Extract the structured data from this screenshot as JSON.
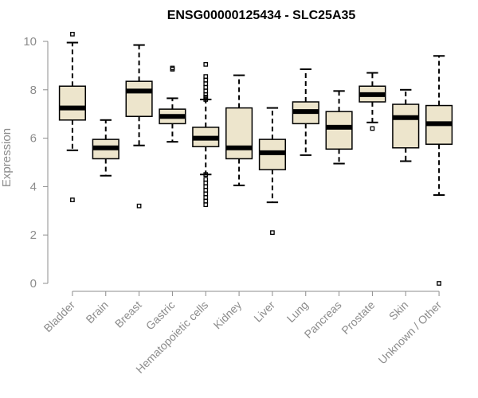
{
  "chart_data": {
    "type": "box",
    "title": "ENSG00000125434 - SLC25A35",
    "xlabel": "",
    "ylabel": "Expression",
    "ylim": [
      0,
      10.3
    ],
    "yticks": [
      0,
      2,
      4,
      6,
      8,
      10
    ],
    "grid": false,
    "box_fill": "#ede5cc",
    "box_stroke": "#000000",
    "categories": [
      "Bladder",
      "Brain",
      "Breast",
      "Gastric",
      "Hematopoietic cells",
      "Kidney",
      "Liver",
      "Lung",
      "Pancreas",
      "Prostate",
      "Skin",
      "Unknown / Other"
    ],
    "boxes": [
      {
        "whisker_low": 5.5,
        "q1": 6.75,
        "median": 7.25,
        "q3": 8.15,
        "whisker_high": 9.95,
        "outliers": [
          10.3,
          3.45
        ]
      },
      {
        "whisker_low": 4.45,
        "q1": 5.15,
        "median": 5.6,
        "q3": 5.95,
        "whisker_high": 6.75,
        "outliers": []
      },
      {
        "whisker_low": 5.7,
        "q1": 6.9,
        "median": 7.95,
        "q3": 8.35,
        "whisker_high": 9.85,
        "outliers": [
          3.2
        ]
      },
      {
        "whisker_low": 5.85,
        "q1": 6.6,
        "median": 6.9,
        "q3": 7.2,
        "whisker_high": 7.65,
        "outliers": [
          8.85,
          8.9
        ]
      },
      {
        "whisker_low": 4.5,
        "q1": 5.65,
        "median": 6.0,
        "q3": 6.45,
        "whisker_high": 7.6,
        "outliers": [
          9.05,
          8.55,
          8.4,
          8.25,
          8.1,
          7.95,
          7.8,
          7.7,
          7.6,
          4.5,
          4.3,
          4.15,
          4.0,
          3.85,
          3.7,
          3.55,
          3.4,
          3.25
        ]
      },
      {
        "whisker_low": 4.05,
        "q1": 5.15,
        "median": 5.6,
        "q3": 7.25,
        "whisker_high": 8.6,
        "outliers": []
      },
      {
        "whisker_low": 3.35,
        "q1": 4.7,
        "median": 5.4,
        "q3": 5.95,
        "whisker_high": 7.25,
        "outliers": [
          2.1
        ]
      },
      {
        "whisker_low": 5.3,
        "q1": 6.6,
        "median": 7.1,
        "q3": 7.5,
        "whisker_high": 8.85,
        "outliers": []
      },
      {
        "whisker_low": 4.95,
        "q1": 5.55,
        "median": 6.45,
        "q3": 7.1,
        "whisker_high": 7.95,
        "outliers": []
      },
      {
        "whisker_low": 6.65,
        "q1": 7.5,
        "median": 7.8,
        "q3": 8.15,
        "whisker_high": 8.7,
        "outliers": [
          6.4
        ]
      },
      {
        "whisker_low": 5.05,
        "q1": 5.6,
        "median": 6.85,
        "q3": 7.4,
        "whisker_high": 8.0,
        "outliers": []
      },
      {
        "whisker_low": 3.65,
        "q1": 5.75,
        "median": 6.6,
        "q3": 7.35,
        "whisker_high": 9.4,
        "outliers": [
          0.0
        ]
      }
    ]
  }
}
